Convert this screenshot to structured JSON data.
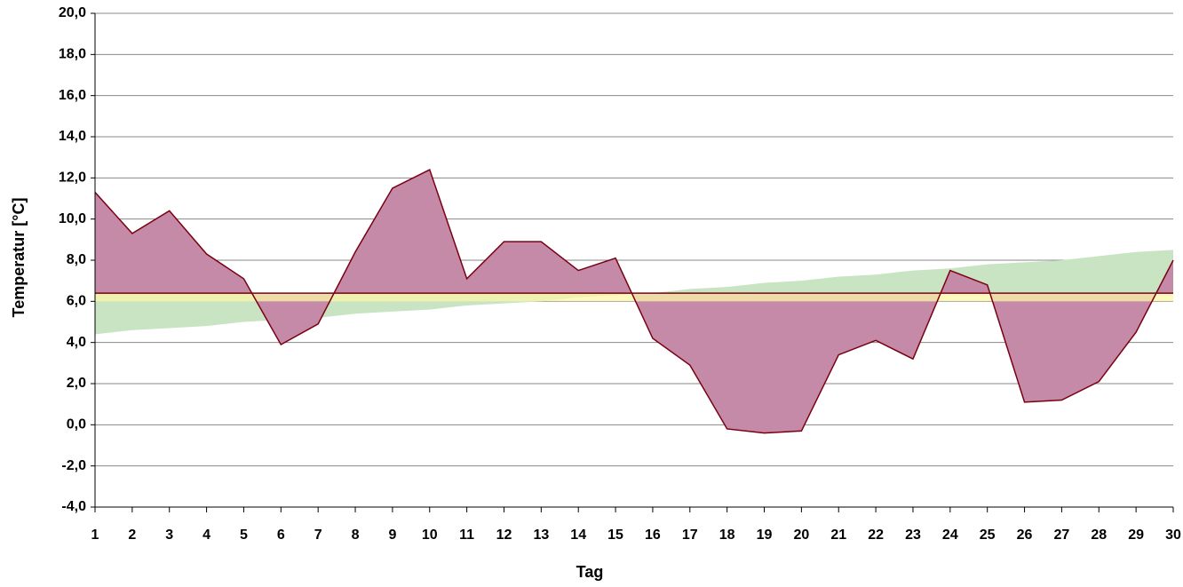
{
  "chart_data": {
    "type": "area_line",
    "x_label": "Tag",
    "y_label": "Temperatur [°C]",
    "x": [
      1,
      2,
      3,
      4,
      5,
      6,
      7,
      8,
      9,
      10,
      11,
      12,
      13,
      14,
      15,
      16,
      17,
      18,
      19,
      20,
      21,
      22,
      23,
      24,
      25,
      26,
      27,
      28,
      29,
      30
    ],
    "xlim": [
      1,
      30
    ],
    "xticks": [
      1,
      2,
      3,
      4,
      5,
      6,
      7,
      8,
      9,
      10,
      11,
      12,
      13,
      14,
      15,
      16,
      17,
      18,
      19,
      20,
      21,
      22,
      23,
      24,
      25,
      26,
      27,
      28,
      29,
      30
    ],
    "ylim": [
      -4,
      20
    ],
    "yticks": [
      {
        "value": -4,
        "label": "-4,0"
      },
      {
        "value": -2,
        "label": "-2,0"
      },
      {
        "value": 0,
        "label": "0,0"
      },
      {
        "value": 2,
        "label": "2,0"
      },
      {
        "value": 4,
        "label": "4,0"
      },
      {
        "value": 6,
        "label": "6,0"
      },
      {
        "value": 8,
        "label": "8,0"
      },
      {
        "value": 10,
        "label": "10,0"
      },
      {
        "value": 12,
        "label": "12,0"
      },
      {
        "value": 14,
        "label": "14,0"
      },
      {
        "value": 16,
        "label": "16,0"
      },
      {
        "value": 18,
        "label": "18,0"
      },
      {
        "value": 20,
        "label": "20,0"
      }
    ],
    "grid": true,
    "baseline": 6.4,
    "baseline_color": "#7a0010",
    "band": [
      6.0,
      6.4
    ],
    "band_color": "#fbf6a8",
    "series": [
      {
        "color": "#c9e4c3",
        "values": [
          4.4,
          4.6,
          4.7,
          4.8,
          5.0,
          5.1,
          5.2,
          5.4,
          5.5,
          5.6,
          5.8,
          5.9,
          6.0,
          6.2,
          6.3,
          6.4,
          6.6,
          6.7,
          6.9,
          7.0,
          7.2,
          7.3,
          7.5,
          7.6,
          7.8,
          7.9,
          8.0,
          8.2,
          8.4,
          8.5
        ]
      },
      {
        "color": "#7a0010",
        "fill": "#c48aa8",
        "values": [
          11.3,
          9.3,
          10.4,
          8.3,
          7.1,
          3.9,
          4.9,
          8.4,
          11.5,
          12.4,
          7.1,
          8.9,
          8.9,
          7.5,
          8.1,
          4.2,
          2.9,
          -0.2,
          -0.4,
          -0.3,
          3.4,
          4.1,
          3.2,
          7.5,
          6.8,
          1.1,
          1.2,
          2.1,
          4.5,
          8.0
        ]
      }
    ]
  }
}
